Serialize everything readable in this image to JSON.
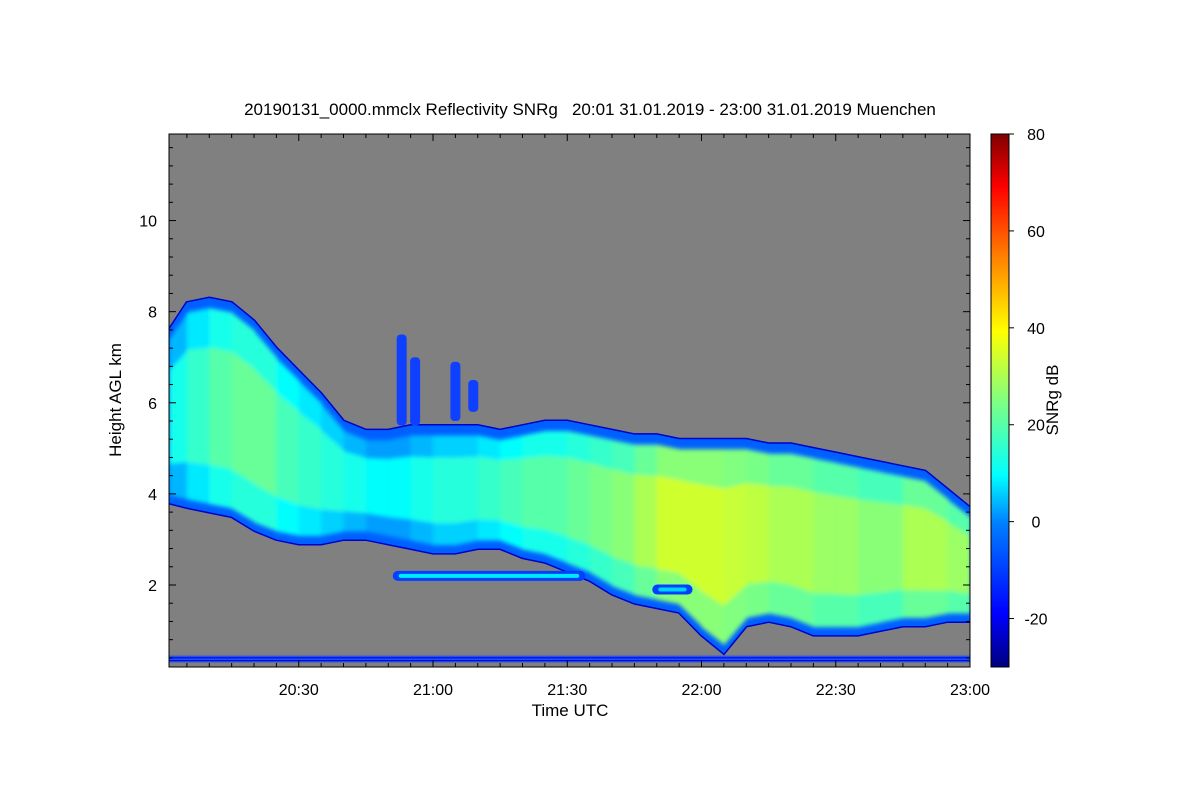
{
  "chart_data": {
    "type": "heatmap",
    "title": "20190131_0000.mmclx Reflectivity SNRg   20:01 31.01.2019 - 23:00 31.01.2019 Muenchen",
    "xlabel": "Time UTC",
    "ylabel": "Height AGL km",
    "colorbar_label": "SNRg dB",
    "x_range_min": [
      1201,
      1380
    ],
    "y_range_km": [
      0.2,
      11.9
    ],
    "x_ticks": [
      {
        "label": "20:30",
        "min": 1230
      },
      {
        "label": "21:00",
        "min": 1260
      },
      {
        "label": "21:30",
        "min": 1290
      },
      {
        "label": "22:00",
        "min": 1320
      },
      {
        "label": "22:30",
        "min": 1350
      },
      {
        "label": "23:00",
        "min": 1380
      }
    ],
    "y_ticks": [
      {
        "label": "2",
        "km": 2
      },
      {
        "label": "4",
        "km": 4
      },
      {
        "label": "6",
        "km": 6
      },
      {
        "label": "8",
        "km": 8
      },
      {
        "label": "10",
        "km": 10
      }
    ],
    "colorbar_range_db": [
      -30,
      80
    ],
    "colorbar_ticks": [
      {
        "label": "-20",
        "db": -20
      },
      {
        "label": "0",
        "db": 0
      },
      {
        "label": "20",
        "db": 20
      },
      {
        "label": "40",
        "db": 40
      },
      {
        "label": "60",
        "db": 60
      },
      {
        "label": "80",
        "db": 80
      }
    ],
    "colormap": [
      "#00007f",
      "#0000ff",
      "#0080ff",
      "#00ffff",
      "#80ff80",
      "#ffff00",
      "#ff8000",
      "#ff0000",
      "#7f0000"
    ],
    "background_color": "#808080",
    "main_cloud": {
      "description": "approximate cloud envelope: time (min UTC), cloud top km, cloud base km, typical SNR dB",
      "times": [
        1201,
        1205,
        1210,
        1215,
        1220,
        1225,
        1230,
        1235,
        1240,
        1245,
        1250,
        1255,
        1260,
        1265,
        1270,
        1275,
        1280,
        1285,
        1290,
        1295,
        1300,
        1305,
        1310,
        1315,
        1320,
        1325,
        1330,
        1335,
        1340,
        1345,
        1350,
        1355,
        1360,
        1365,
        1370,
        1375,
        1380
      ],
      "top_km": [
        7.6,
        8.2,
        8.3,
        8.2,
        7.8,
        7.2,
        6.7,
        6.2,
        5.6,
        5.4,
        5.4,
        5.5,
        5.5,
        5.5,
        5.5,
        5.4,
        5.5,
        5.6,
        5.6,
        5.5,
        5.4,
        5.3,
        5.3,
        5.2,
        5.2,
        5.2,
        5.2,
        5.1,
        5.1,
        5.0,
        4.9,
        4.8,
        4.7,
        4.6,
        4.5,
        4.1,
        3.7
      ],
      "base_km": [
        3.8,
        3.7,
        3.6,
        3.5,
        3.2,
        3.0,
        2.9,
        2.9,
        3.0,
        3.0,
        2.9,
        2.8,
        2.7,
        2.7,
        2.8,
        2.8,
        2.6,
        2.5,
        2.3,
        2.1,
        1.8,
        1.6,
        1.5,
        1.4,
        0.9,
        0.5,
        1.1,
        1.2,
        1.1,
        0.9,
        0.9,
        0.9,
        1.0,
        1.1,
        1.1,
        1.2,
        1.2
      ],
      "snr_db": [
        12,
        16,
        20,
        22,
        22,
        18,
        16,
        14,
        12,
        10,
        10,
        12,
        14,
        14,
        16,
        18,
        20,
        20,
        22,
        24,
        26,
        30,
        34,
        34,
        34,
        33,
        32,
        30,
        30,
        28,
        28,
        26,
        26,
        30,
        30,
        28,
        22
      ]
    },
    "side_features": [
      {
        "name": "lower-band",
        "t_start": 1251,
        "t_end": 1294,
        "km": 2.2,
        "snr_db": 8
      },
      {
        "name": "lower-band-2",
        "t_start": 1309,
        "t_end": 1318,
        "km": 1.9,
        "snr_db": 6
      }
    ],
    "streaks": [
      {
        "t": 1253,
        "bottom_km": 5.5,
        "top_km": 7.5
      },
      {
        "t": 1256,
        "bottom_km": 5.5,
        "top_km": 7.0
      },
      {
        "t": 1265,
        "bottom_km": 5.6,
        "top_km": 6.9
      },
      {
        "t": 1269,
        "bottom_km": 5.8,
        "top_km": 6.5
      }
    ],
    "surface_clutter_km": [
      0.3,
      0.45
    ]
  }
}
